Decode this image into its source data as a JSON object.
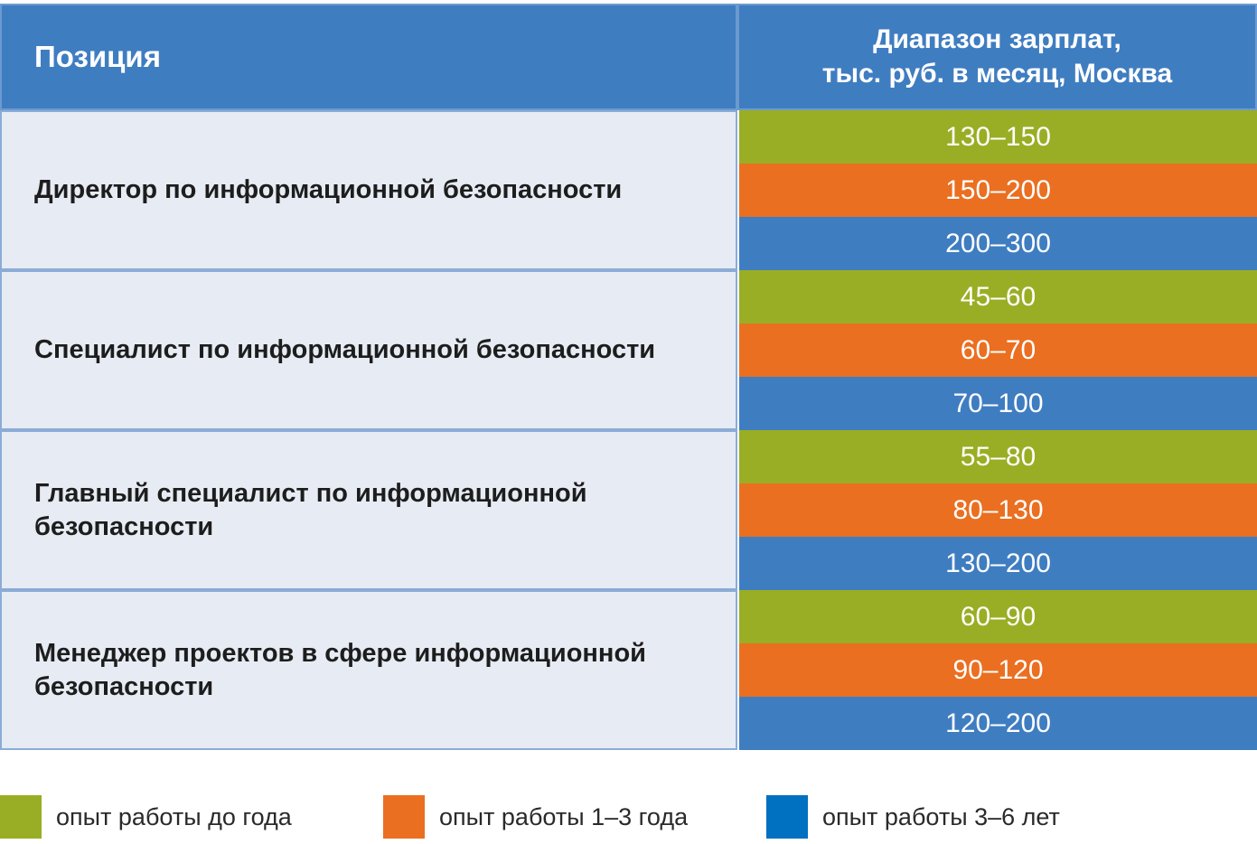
{
  "chart_data": {
    "type": "table",
    "columns": [
      "Позиция",
      "Диапазон зарплат, тыс. руб. в месяц, Москва"
    ],
    "header_right_lines": [
      "Диапазон зарплат,",
      "тыс. руб. в месяц, Москва"
    ],
    "rows": [
      {
        "position": "Директор по информационной безопасности",
        "ranges": [
          {
            "label": "130–150",
            "min": 130,
            "max": 150,
            "experience": "опыт работы до года"
          },
          {
            "label": "150–200",
            "min": 150,
            "max": 200,
            "experience": "опыт работы 1–3 года"
          },
          {
            "label": "200–300",
            "min": 200,
            "max": 300,
            "experience": "опыт работы 3–6 лет"
          }
        ]
      },
      {
        "position": "Специалист по информационной безопасности",
        "ranges": [
          {
            "label": "45–60",
            "min": 45,
            "max": 60,
            "experience": "опыт работы до года"
          },
          {
            "label": "60–70",
            "min": 60,
            "max": 70,
            "experience": "опыт работы 1–3 года"
          },
          {
            "label": "70–100",
            "min": 70,
            "max": 100,
            "experience": "опыт работы 3–6 лет"
          }
        ]
      },
      {
        "position": "Главный специалист по информационной безопасности",
        "ranges": [
          {
            "label": "55–80",
            "min": 55,
            "max": 80,
            "experience": "опыт работы до года"
          },
          {
            "label": "80–130",
            "min": 80,
            "max": 130,
            "experience": "опыт работы 1–3 года"
          },
          {
            "label": "130–200",
            "min": 130,
            "max": 200,
            "experience": "опыт работы 3–6 лет"
          }
        ]
      },
      {
        "position": "Менеджер проектов в сфере информационной безопасности",
        "ranges": [
          {
            "label": "60–90",
            "min": 60,
            "max": 90,
            "experience": "опыт работы до года"
          },
          {
            "label": "90–120",
            "min": 90,
            "max": 120,
            "experience": "опыт работы 1–3 года"
          },
          {
            "label": "120–200",
            "min": 120,
            "max": 200,
            "experience": "опыт работы 3–6 лет"
          }
        ]
      }
    ],
    "legend": [
      {
        "label": "опыт работы до года",
        "color": "#99ae24"
      },
      {
        "label": "опыт работы 1–3 года",
        "color": "#ea6f21"
      },
      {
        "label": "опыт работы 3–6 лет",
        "color": "#0070c0"
      }
    ],
    "band_colors": [
      "#99ae24",
      "#ea6f21",
      "#3f7dc1"
    ],
    "header_color": "#3f7dc1",
    "row_background": "#e7ebf3"
  }
}
